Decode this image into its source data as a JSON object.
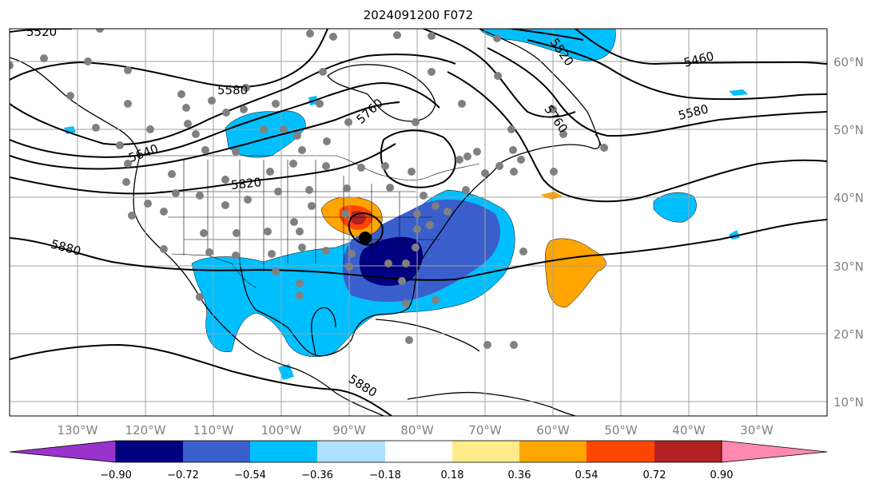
{
  "title": "2024091200 F072",
  "longitude_labels": [
    "130°W",
    "120°W",
    "110°W",
    "100°W",
    "90°W",
    "80°W",
    "70°W",
    "60°W",
    "50°W",
    "40°W",
    "30°W"
  ],
  "latitude_labels": [
    "60°N",
    "50°N",
    "40°N",
    "30°N",
    "20°N",
    "10°N"
  ],
  "contour_labels": [
    "5520",
    "5580",
    "5640",
    "5760",
    "5820",
    "5880",
    "5880",
    "5460",
    "5580",
    "5520",
    "5760"
  ],
  "colorbar": {
    "tick_labels": [
      "−0.90",
      "−0.72",
      "−0.54",
      "−0.36",
      "−0.18",
      "0.18",
      "0.36",
      "0.54",
      "0.72",
      "0.90"
    ],
    "colors": [
      "#9933cc",
      "#000080",
      "#3a5fcd",
      "#00bfff",
      "#b0e0ff",
      "#ffffff",
      "#ffeb8a",
      "#ffa500",
      "#ff4500",
      "#b22222",
      "#ff88b0"
    ]
  },
  "colors": {
    "grid": "#a0a0a0",
    "axis_text": "#808080",
    "contour": "#000000",
    "station_dot": "#808080",
    "center_dot": "#000000"
  }
}
